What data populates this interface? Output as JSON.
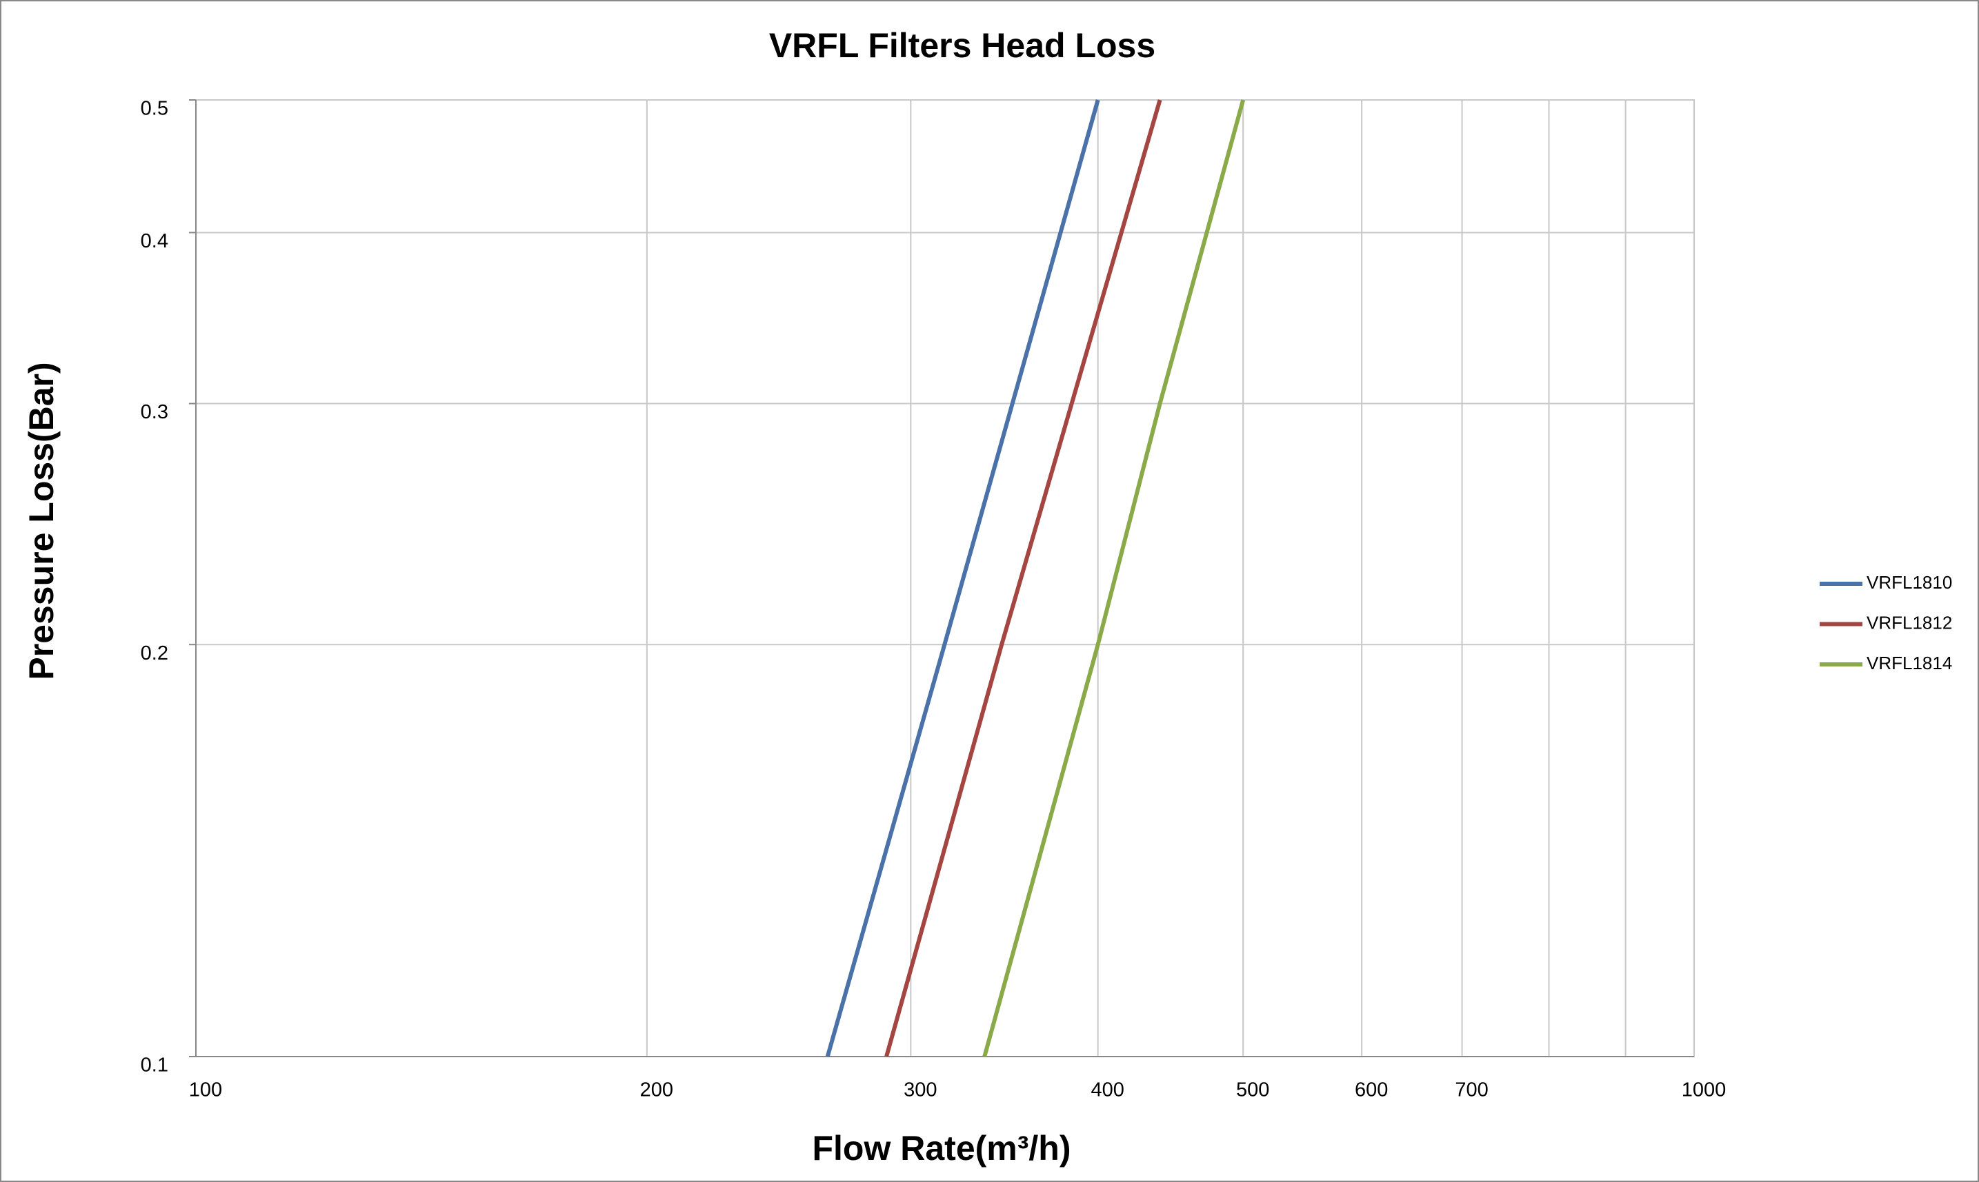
{
  "chart_data": {
    "type": "line",
    "title": "VRFL Filters Head Loss",
    "x_label": "Flow Rate(m³/h)",
    "y_label": "Pressure Loss(Bar)",
    "xscale": "log",
    "yscale": "log",
    "grid": true,
    "legend": "right",
    "xlim": [
      100,
      1000
    ],
    "ylim": [
      0.1,
      0.5
    ],
    "xticks": [
      100,
      200,
      300,
      400,
      500,
      600,
      700,
      1000
    ],
    "xminor": [
      800,
      900
    ],
    "yticks": [
      0.1,
      0.2,
      0.3,
      0.4,
      0.5
    ],
    "series": [
      {
        "name": "VRFL1810",
        "color": "#4a72a8",
        "x": [
          264,
          316,
          400
        ],
        "values": [
          0.1,
          0.2,
          0.5
        ]
      },
      {
        "name": "VRFL1812",
        "color": "#a44541",
        "x": [
          289,
          345,
          440
        ],
        "values": [
          0.1,
          0.2,
          0.5
        ]
      },
      {
        "name": "VRFL1814",
        "color": "#8aaa4a",
        "x": [
          336,
          400,
          440,
          500
        ],
        "values": [
          0.1,
          0.2,
          0.3,
          0.5
        ]
      }
    ]
  }
}
